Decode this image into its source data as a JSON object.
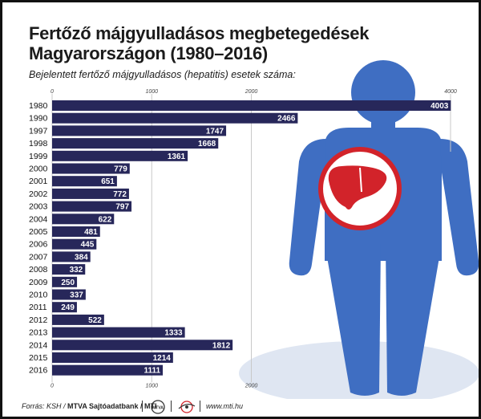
{
  "title": {
    "line1": "Fertőző májgyulladásos megbetegedések",
    "line2": "Magyarországon (1980–2016)"
  },
  "subtitle": "Bejelentett fertőző májgyulladásos (hepatitis) esetek száma:",
  "footer": {
    "source_label": "Forrás: KSH /",
    "source_bold": "MTVA Sajtóadatbank / MTI",
    "logo1_text": "MTVA",
    "website": "www.mti.hu"
  },
  "colors": {
    "bar": "#27275a",
    "figure": "#3f6ec2",
    "figure_shadow": "#dfe6f2",
    "liver": "#d2232a",
    "gridline": "#c8c8c8"
  },
  "chart_data": {
    "type": "bar",
    "orientation": "horizontal",
    "categories": [
      "1980",
      "1990",
      "1997",
      "1998",
      "1999",
      "2000",
      "2001",
      "2002",
      "2003",
      "2004",
      "2005",
      "2006",
      "2007",
      "2008",
      "2009",
      "2010",
      "2011",
      "2012",
      "2013",
      "2014",
      "2015",
      "2016"
    ],
    "values": [
      4003,
      2466,
      1747,
      1668,
      1361,
      779,
      651,
      772,
      797,
      622,
      481,
      445,
      384,
      332,
      250,
      337,
      249,
      522,
      1333,
      1812,
      1214,
      1111
    ],
    "x_ticks_top": [
      0,
      1000,
      2000,
      4000
    ],
    "x_ticks_bottom": [
      0,
      1000,
      2000
    ],
    "xlim": [
      0,
      4000
    ],
    "grid": true,
    "data_labels": true
  }
}
